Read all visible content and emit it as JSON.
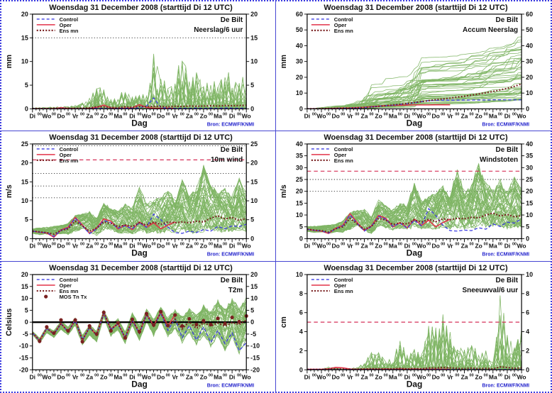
{
  "meta": {
    "title": "Woensdag 31 December 2008 (starttijd Di 12 UTC)",
    "station": "De Bilt",
    "source_label": "Bron: ECMWF/KNMI"
  },
  "colors": {
    "ensemble_green": "#6aa94b",
    "control_blue": "#3d3de2",
    "oper_red": "#e23349",
    "ensmean_darkred": "#7a2121",
    "threshold_red": "#d63058",
    "threshold_dotted": "#222222",
    "source_blue": "#2222cc",
    "frame_blue": "#4646d2",
    "text_black": "#111111"
  },
  "legend": {
    "control": "Control",
    "oper": "Oper",
    "ensmean": "Ens mn",
    "mos": "MOS Tn Tx"
  },
  "x_axis": {
    "label": "Dag",
    "hours_total": 360,
    "series_step_h": 12,
    "day_labels": [
      "Di",
      "Wo",
      "Do",
      "Vr",
      "Za",
      "Zo",
      "Ma",
      "Di",
      "Wo",
      "Do",
      "Vr",
      "Za",
      "Zo",
      "Ma",
      "Di",
      "Wo"
    ],
    "minor_label": "00"
  },
  "chart_data": [
    {
      "type": "line",
      "name": "neerslag-6uur",
      "subtitle": "Neerslag/6 uur",
      "ylabel": "mm",
      "ylim": [
        0,
        20
      ],
      "ytick_step": 5,
      "thresholds_dotted": [
        15
      ],
      "thresholds_dashed_red": [],
      "zero_line": false,
      "legend_keys": [
        "control",
        "oper",
        "ensmean"
      ],
      "ensemble": {
        "mode": "spike",
        "count": 48,
        "seed": 101,
        "upper": [
          0.3,
          0.3,
          0.35,
          0.4,
          0.5,
          0.5,
          0.8,
          1.5,
          2.5,
          4.8,
          4.2,
          2.2,
          2.4,
          4.7,
          2.6,
          3.2,
          3.0,
          11.7,
          7.0,
          5.2,
          7.5,
          12.0,
          6.0,
          8.0,
          5.0,
          6.5,
          5.2,
          9.0,
          6.5,
          5.5,
          8.2
        ]
      },
      "series": {
        "control": [
          0.05,
          0.05,
          0.05,
          0.05,
          0.05,
          0.05,
          0.05,
          0.05,
          0.05,
          0.1,
          0.1,
          0.05,
          0.1,
          0.1,
          0.1,
          0.2,
          0.6,
          2.3,
          0.3,
          0.1,
          0.1,
          0.15,
          0.1,
          0.15,
          0.1,
          0.15,
          0.1,
          0.2,
          0.15,
          0.1,
          0.2
        ],
        "oper": [
          0.05,
          0.05,
          0.05,
          0.05,
          0.25,
          0.1,
          0.05,
          0.05,
          0.1,
          0.3,
          0.8,
          0.2,
          0.1,
          0.15,
          0.2,
          0.9,
          0.3,
          0.15,
          0.1,
          0.15,
          0.1
        ],
        "ensmean": [
          0.05,
          0.05,
          0.05,
          0.1,
          0.1,
          0.1,
          0.1,
          0.15,
          0.2,
          0.45,
          0.4,
          0.3,
          0.25,
          0.45,
          0.3,
          0.5,
          0.45,
          0.55,
          0.5,
          0.45,
          0.55,
          0.5,
          0.6,
          0.55,
          0.6,
          0.65,
          0.6,
          0.7,
          0.65,
          0.7,
          0.75
        ]
      },
      "mos_dots": []
    },
    {
      "type": "line",
      "name": "accum-neerslag",
      "subtitle": "Accum Neerslag",
      "ylabel": "mm",
      "ylim": [
        0,
        60
      ],
      "ytick_step": 10,
      "thresholds_dotted": [],
      "thresholds_dashed_red": [],
      "zero_line": false,
      "legend_keys": [
        "control",
        "oper",
        "ensmean"
      ],
      "ensemble": {
        "mode": "accum",
        "count": 48,
        "seed": 102,
        "upper": [
          0.3,
          0.5,
          0.8,
          1.0,
          1.3,
          1.7,
          2.2,
          3.0,
          4.5,
          7.0,
          8.5,
          9.5,
          10.5,
          12.0,
          14.0,
          20.0,
          29.0,
          30.0,
          30.5,
          31.0,
          31.5,
          32.0,
          33.0,
          34.0,
          35.0,
          36.5,
          38.0,
          39.5,
          41.0,
          43.5,
          46.0
        ]
      },
      "series": {
        "control": [
          0,
          0.05,
          0.1,
          0.1,
          0.2,
          0.3,
          0.4,
          0.5,
          0.7,
          1.2,
          1.6,
          2.0,
          2.3,
          2.8,
          3.2,
          3.8,
          4.5,
          5.2,
          5.4,
          5.5,
          5.5,
          5.5,
          5.6,
          5.6,
          5.6,
          5.6,
          5.7,
          5.7,
          5.7,
          5.7,
          5.7
        ],
        "oper": [
          0,
          0.05,
          0.1,
          0.2,
          0.35,
          0.5,
          0.6,
          0.8,
          1.0,
          1.4,
          1.7,
          2.0,
          2.2,
          2.3,
          2.4,
          2.5,
          2.5,
          2.5,
          2.6,
          2.6,
          2.6
        ],
        "ensmean": [
          0,
          0.05,
          0.1,
          0.2,
          0.3,
          0.4,
          0.5,
          0.7,
          0.9,
          1.2,
          1.6,
          2.0,
          2.4,
          2.9,
          3.4,
          4.0,
          4.6,
          5.2,
          5.8,
          6.3,
          6.8,
          7.4,
          8.0,
          8.7,
          9.4,
          10.2,
          11.0,
          12.0,
          13.0,
          14.3,
          15.8
        ]
      },
      "mos_dots": []
    },
    {
      "type": "line",
      "name": "wind-10m",
      "subtitle": "10m wind",
      "ylabel": "m/s",
      "ylim": [
        0,
        25
      ],
      "ytick_step": 5,
      "thresholds_dotted": [
        10.8,
        13.9,
        17.2,
        24.5
      ],
      "thresholds_dashed_red": [
        20.8
      ],
      "zero_line": false,
      "legend_keys": [
        "control",
        "oper",
        "ensmean"
      ],
      "ensemble": {
        "mode": "walk",
        "count": 48,
        "seed": 103,
        "upper": [
          2.6,
          2.9,
          3.1,
          3.3,
          3.6,
          4.1,
          6.2,
          6.6,
          7.2,
          5.4,
          9.6,
          8.2,
          7.4,
          9.2,
          8.4,
          14.0,
          9.4,
          10.4,
          11.2,
          13.2,
          10.4,
          15.6,
          11.4,
          13.4,
          19.5,
          14.4,
          12.4,
          13.4,
          11.4,
          16.0,
          12.4
        ],
        "lower": [
          1.4,
          1.0,
          1.2,
          0.8,
          1.2,
          1.0,
          1.6,
          2.6,
          1.2,
          0.6,
          2.2,
          1.8,
          1.2,
          1.6,
          1.2,
          1.8,
          1.4,
          1.6,
          1.2,
          1.8,
          1.4,
          1.6,
          1.2,
          1.4,
          1.6,
          1.8,
          1.6,
          1.8,
          1.4,
          1.8,
          1.6
        ]
      },
      "series": {
        "control": [
          2.0,
          1.7,
          1.6,
          0.6,
          2.2,
          2.8,
          5.4,
          3.4,
          1.3,
          2.6,
          4.8,
          4.2,
          2.8,
          3.4,
          2.6,
          4.2,
          3.0,
          6.5,
          5.0,
          3.0,
          1.6,
          1.4,
          2.0,
          1.6,
          2.4,
          2.0,
          3.2,
          2.6,
          3.4,
          3.2,
          3.8
        ],
        "oper": [
          2.0,
          1.7,
          1.5,
          0.4,
          2.3,
          3.0,
          5.6,
          3.6,
          1.4,
          2.8,
          5.2,
          4.6,
          2.6,
          3.6,
          2.4,
          4.4,
          3.0,
          4.2,
          2.6,
          3.6,
          4.4
        ],
        "ensmean": [
          2.0,
          1.8,
          1.6,
          1.2,
          2.2,
          2.6,
          4.6,
          3.4,
          2.0,
          2.8,
          4.4,
          4.0,
          3.2,
          3.6,
          3.2,
          4.2,
          3.6,
          4.4,
          3.8,
          4.4,
          4.2,
          4.4,
          4.2,
          4.6,
          4.4,
          5.4,
          6.0,
          5.2,
          5.6,
          4.8,
          5.4
        ]
      },
      "mos_dots": []
    },
    {
      "type": "line",
      "name": "windstoten",
      "subtitle": "Windstoten",
      "ylabel": "m/s",
      "ylim": [
        0,
        40
      ],
      "ytick_step": 5,
      "thresholds_dotted": [
        20,
        25
      ],
      "thresholds_dashed_red": [
        28.5
      ],
      "zero_line": false,
      "legend_keys": [
        "control",
        "oper",
        "ensmean"
      ],
      "ensemble": {
        "mode": "walk",
        "count": 48,
        "seed": 104,
        "upper": [
          5.2,
          5.4,
          5.6,
          5.8,
          6.2,
          7.8,
          11.4,
          12.0,
          12.4,
          9.6,
          16.4,
          14.2,
          12.6,
          15.2,
          14.4,
          24.0,
          16.4,
          18.2,
          19.4,
          22.4,
          18.2,
          30.5,
          20.4,
          24.2,
          32.0,
          24.4,
          21.2,
          25.2,
          20.4,
          26.0,
          21.4
        ],
        "lower": [
          3.0,
          2.6,
          2.8,
          2.2,
          2.8,
          2.6,
          3.8,
          5.6,
          3.2,
          2.0,
          5.0,
          4.4,
          3.4,
          4.2,
          3.6,
          4.6,
          3.8,
          4.4,
          3.4,
          4.6,
          4.0,
          4.4,
          3.8,
          4.2,
          4.4,
          4.8,
          4.4,
          4.8,
          4.0,
          4.8,
          4.4
        ]
      },
      "series": {
        "control": [
          4.0,
          3.5,
          3.3,
          2.4,
          4.2,
          5.4,
          10.0,
          6.4,
          3.2,
          5.2,
          9.4,
          8.2,
          5.2,
          6.6,
          4.4,
          7.8,
          5.4,
          12.7,
          9.8,
          5.6,
          3.4,
          3.2,
          3.6,
          3.4,
          4.6,
          4.0,
          6.2,
          5.2,
          7.0,
          6.6,
          8.4
        ],
        "oper": [
          4.0,
          3.5,
          3.2,
          2.2,
          4.4,
          5.6,
          10.5,
          6.8,
          3.4,
          5.4,
          9.8,
          8.6,
          5.0,
          6.8,
          4.6,
          8.2,
          5.6,
          7.8,
          5.0,
          6.8,
          8.2
        ],
        "ensmean": [
          4.0,
          3.6,
          3.4,
          2.8,
          4.2,
          5.0,
          8.6,
          6.2,
          4.0,
          5.2,
          8.6,
          7.8,
          6.0,
          6.6,
          6.2,
          8.0,
          7.0,
          8.2,
          7.2,
          8.4,
          8.0,
          8.6,
          8.4,
          9.0,
          8.8,
          10.0,
          10.8,
          9.6,
          10.2,
          9.2,
          9.8
        ]
      },
      "mos_dots": []
    },
    {
      "type": "line",
      "name": "t2m",
      "subtitle": "T2m",
      "ylabel": "Celsius",
      "ylim": [
        -20,
        20
      ],
      "ytick_step": 5,
      "thresholds_dotted": [],
      "thresholds_dashed_red": [],
      "zero_line": true,
      "legend_keys": [
        "control",
        "oper",
        "ensmean",
        "mos"
      ],
      "ensemble": {
        "mode": "walk",
        "count": 48,
        "seed": 105,
        "upper": [
          -3.8,
          -6.5,
          -2.0,
          -3.5,
          0.5,
          -2.0,
          2.0,
          -5.5,
          -1.0,
          -3.5,
          5.0,
          -0.5,
          1.5,
          -4.0,
          4.0,
          -1.0,
          5.5,
          1.5,
          6.5,
          2.0,
          5.5,
          2.5,
          6.0,
          3.0,
          7.5,
          4.5,
          9.5,
          5.5,
          10.5,
          6.0,
          10.5
        ],
        "lower": [
          -5.2,
          -8.8,
          -4.5,
          -6.5,
          -3.0,
          -5.5,
          -1.5,
          -9.5,
          -5.5,
          -8.5,
          2.0,
          -6.0,
          -3.5,
          -9.0,
          -1.5,
          -8.0,
          0.0,
          -6.0,
          0.5,
          -6.5,
          -3.0,
          -9.0,
          -4.5,
          -10.0,
          -5.5,
          -11.0,
          -6.5,
          -12.5,
          -7.0,
          -13.5,
          -8.0
        ]
      },
      "series": {
        "control": [
          -4.5,
          -7.8,
          -2.6,
          -5.0,
          -0.7,
          -4.1,
          0.8,
          -7.6,
          -2.2,
          -5.6,
          3.8,
          -3.2,
          -0.8,
          -6.6,
          0.8,
          -4.8,
          3.2,
          -2.0,
          3.8,
          -3.5,
          1.5,
          -6.5,
          -1.5,
          -7.5,
          -2.0,
          -8.5,
          -3.5,
          -9.0,
          -4.5,
          -12.0,
          -8.5
        ],
        "oper": [
          -4.5,
          -7.8,
          -2.5,
          -5.0,
          -0.5,
          -4.0,
          1.0,
          -7.8,
          -2.0,
          -5.5,
          4.0,
          -3.0,
          -0.5,
          -6.8,
          1.0,
          -4.5,
          3.5,
          -1.5,
          4.3,
          -1.5,
          3.0
        ],
        "ensmean": [
          -4.5,
          -7.7,
          -2.6,
          -4.9,
          -0.6,
          -4.0,
          0.9,
          -7.5,
          -2.1,
          -5.4,
          3.9,
          -3.0,
          -0.6,
          -6.5,
          1.1,
          -4.4,
          3.3,
          -1.6,
          4.0,
          -2.0,
          1.2,
          -2.8,
          0.2,
          -2.6,
          -0.2,
          -1.6,
          -0.4,
          -1.6,
          -0.2,
          -1.0,
          0.8
        ]
      },
      "mos_dots": [
        [
          12,
          -8
        ],
        [
          24,
          -2
        ],
        [
          36,
          -4.6
        ],
        [
          48,
          0.9
        ],
        [
          60,
          -3.6
        ],
        [
          72,
          0.9
        ],
        [
          84,
          -8.2
        ],
        [
          96,
          -1.6
        ],
        [
          108,
          -5
        ],
        [
          120,
          4.1
        ],
        [
          132,
          -3.6
        ],
        [
          144,
          -0.3
        ],
        [
          156,
          -6.6
        ],
        [
          168,
          1.2
        ],
        [
          180,
          -4
        ],
        [
          192,
          3.6
        ],
        [
          204,
          -1.2
        ],
        [
          216,
          4.4
        ],
        [
          228,
          -1.4
        ],
        [
          240,
          3
        ],
        [
          252,
          -1.6
        ],
        [
          264,
          1.4
        ],
        [
          276,
          -1
        ],
        [
          288,
          0.6
        ],
        [
          300,
          -1
        ],
        [
          312,
          1.6
        ],
        [
          324,
          -0.6
        ],
        [
          336,
          2
        ],
        [
          348,
          0.2
        ],
        [
          360,
          2.6
        ]
      ]
    },
    {
      "type": "line",
      "name": "sneeuwval-6uur",
      "subtitle": "Sneeuwval/6 uur",
      "ylabel": "cm",
      "ylim": [
        0,
        10
      ],
      "ytick_step": 2,
      "thresholds_dotted": [],
      "thresholds_dashed_red": [
        5
      ],
      "zero_line": false,
      "legend_keys": [
        "control",
        "oper",
        "ensmean"
      ],
      "ensemble": {
        "mode": "spike",
        "count": 48,
        "seed": 106,
        "upper": [
          0.05,
          0.05,
          0.1,
          0.3,
          0.2,
          0.1,
          0.15,
          0.3,
          0.8,
          2.0,
          1.9,
          1.2,
          1.0,
          3.5,
          1.6,
          2.2,
          1.6,
          5.0,
          4.6,
          6.1,
          4.8,
          2.6,
          2.2,
          3.1,
          1.6,
          2.2,
          1.2,
          8.1,
          5.0,
          2.4,
          4.4
        ]
      },
      "series": {
        "control": [
          0.03,
          0.03,
          0.03,
          0.03,
          0.03,
          0.03,
          0.03,
          0.03,
          0.03,
          0.03,
          0.03,
          0.03,
          0.03,
          0.03,
          0.03,
          0.03,
          0.03,
          0.03,
          0.03,
          0.03,
          0.03,
          0.03,
          0.03,
          0.03,
          0.03,
          0.03,
          0.03,
          0.03,
          0.03,
          0.03,
          0.03
        ],
        "oper": [
          0.05,
          0.05,
          0.05,
          0.1,
          0.25,
          0.2,
          0.08,
          0.05,
          0.05,
          0.05,
          0.05,
          0.08,
          0.05,
          0.08,
          0.05,
          0.08,
          0.05,
          0.05,
          0.05,
          0.05,
          0.05
        ],
        "ensmean": [
          0.03,
          0.03,
          0.04,
          0.08,
          0.1,
          0.06,
          0.05,
          0.05,
          0.08,
          0.12,
          0.1,
          0.08,
          0.1,
          0.15,
          0.1,
          0.12,
          0.1,
          0.2,
          0.18,
          0.25,
          0.2,
          0.15,
          0.12,
          0.18,
          0.12,
          0.15,
          0.1,
          0.3,
          0.25,
          0.15,
          0.2
        ]
      },
      "mos_dots": []
    }
  ]
}
